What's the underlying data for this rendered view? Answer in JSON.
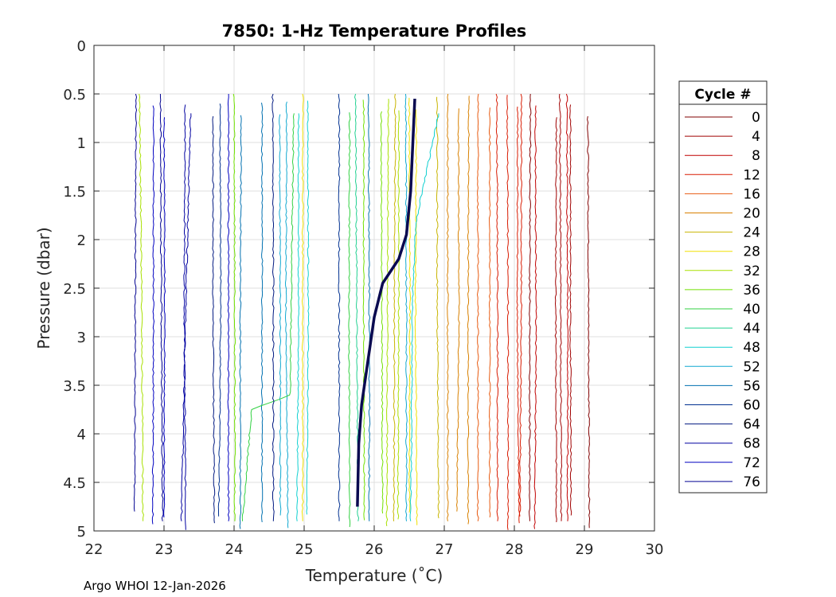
{
  "chart_data": {
    "type": "line",
    "title": "7850: 1-Hz Temperature Profiles",
    "xlabel": "Temperature (˚C)",
    "ylabel": "Pressure (dbar)",
    "xlim": [
      22,
      30
    ],
    "ylim": [
      0,
      5
    ],
    "y_reversed": true,
    "xticks": [
      "22",
      "23",
      "24",
      "25",
      "26",
      "27",
      "28",
      "29",
      "30"
    ],
    "yticks": [
      "0",
      "0.5",
      "1",
      "1.5",
      "2",
      "2.5",
      "3",
      "3.5",
      "4",
      "4.5",
      "5"
    ],
    "grid": true,
    "legend_title": "Cycle #",
    "legend_position": "right",
    "footer": "Argo WHOI 12-Jan-2026",
    "series": [
      {
        "name": "0",
        "color": "#800000",
        "p": [
          0.5,
          2.5,
          4.9
        ],
        "t": [
          28.23,
          28.22,
          28.22
        ]
      },
      {
        "name": "4",
        "color": "#a00000",
        "p": [
          0.5,
          2.5,
          4.9
        ],
        "t": [
          28.65,
          28.66,
          28.67
        ]
      },
      {
        "name": "8",
        "color": "#c00000",
        "p": [
          0.5,
          2.5,
          4.9
        ],
        "t": [
          28.75,
          28.76,
          28.76
        ]
      },
      {
        "name": "12",
        "color": "#d81a00",
        "p": [
          0.5,
          2.5,
          4.9
        ],
        "t": [
          27.75,
          27.76,
          27.76
        ]
      },
      {
        "name": "16",
        "color": "#e85a10",
        "p": [
          0.5,
          2.5,
          4.9
        ],
        "t": [
          27.48,
          27.48,
          27.48
        ]
      },
      {
        "name": "20",
        "color": "#d88000",
        "p": [
          0.5,
          2.5,
          4.9
        ],
        "t": [
          27.05,
          27.05,
          27.05
        ]
      },
      {
        "name": "24",
        "color": "#c8b400",
        "p": [
          0.5,
          2.5,
          4.9
        ],
        "t": [
          26.3,
          26.29,
          26.28
        ]
      },
      {
        "name": "28",
        "color": "#f0e000",
        "p": [
          0.5,
          2.5,
          4.9
        ],
        "t": [
          24.98,
          24.98,
          24.98
        ]
      },
      {
        "name": "32",
        "color": "#a8e000",
        "p": [
          0.5,
          2.5,
          4.9
        ],
        "t": [
          22.65,
          22.68,
          22.7
        ]
      },
      {
        "name": "36",
        "color": "#70e000",
        "p": [
          0.5,
          2.5,
          4.9
        ],
        "t": [
          24.0,
          24.01,
          24.01
        ]
      },
      {
        "name": "40",
        "color": "#30d040",
        "p": [
          0.7,
          3.6,
          3.75,
          4.9
        ],
        "t": [
          24.85,
          24.8,
          24.25,
          24.12
        ]
      },
      {
        "name": "44",
        "color": "#20d090",
        "p": [
          0.5,
          2.5,
          4.9
        ],
        "t": [
          25.73,
          25.75,
          25.77
        ]
      },
      {
        "name": "48",
        "color": "#10d0d0",
        "p": [
          0.7,
          1.8,
          2.5,
          4.9
        ],
        "t": [
          26.92,
          26.6,
          26.55,
          26.52
        ]
      },
      {
        "name": "52",
        "color": "#10a8d0",
        "p": [
          0.5,
          2.5,
          4.9
        ],
        "t": [
          26.45,
          26.46,
          26.46
        ]
      },
      {
        "name": "56",
        "color": "#0070b0",
        "p": [
          0.5,
          2.5,
          4.9
        ],
        "t": [
          25.92,
          25.93,
          25.93
        ]
      },
      {
        "name": "60",
        "color": "#003090",
        "p": [
          0.5,
          2.5,
          4.9
        ],
        "t": [
          25.5,
          25.5,
          25.5
        ]
      },
      {
        "name": "64",
        "color": "#001880",
        "p": [
          0.5,
          2.5,
          4.9
        ],
        "t": [
          24.55,
          24.56,
          24.56
        ]
      },
      {
        "name": "68",
        "color": "#0000a0",
        "p": [
          0.7,
          3.0,
          4.9
        ],
        "t": [
          23.38,
          23.3,
          23.25
        ]
      },
      {
        "name": "72",
        "color": "#0000c0",
        "p": [
          0.5,
          2.5,
          4.9
        ],
        "t": [
          23.92,
          23.92,
          23.92
        ]
      },
      {
        "name": "76",
        "color": "#000090",
        "p": [
          0.5,
          2.5,
          4.9
        ],
        "t": [
          22.95,
          22.96,
          22.98
        ]
      }
    ],
    "highlight": {
      "color": "#0a0a50",
      "p": [
        0.55,
        1.5,
        1.95,
        2.2,
        2.45,
        2.8,
        3.3,
        3.7,
        4.1,
        4.75
      ],
      "t": [
        26.58,
        26.52,
        26.46,
        26.35,
        26.12,
        26.0,
        25.9,
        25.82,
        25.78,
        25.76
      ]
    },
    "extra_colors": [
      "#800000",
      "#a00000",
      "#c00000",
      "#d81a00",
      "#e85a10",
      "#d88000",
      "#c8b400",
      "#f0e000",
      "#a8e000",
      "#70e000",
      "#30d040",
      "#20d090",
      "#10d0d0",
      "#10a8d0",
      "#0070b0",
      "#003090",
      "#001880",
      "#0000a0",
      "#0000c0",
      "#000090"
    ]
  }
}
